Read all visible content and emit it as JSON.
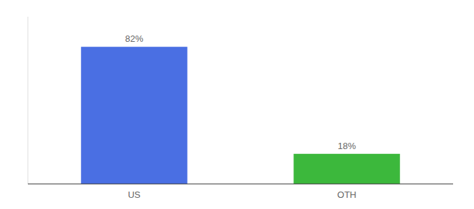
{
  "chart_data": {
    "type": "bar",
    "categories": [
      "US",
      "OTH"
    ],
    "values": [
      82,
      18
    ],
    "value_labels": [
      "82%",
      "18%"
    ],
    "colors": [
      "#4A6FE3",
      "#3CB83C"
    ],
    "ylim": [
      0,
      100
    ],
    "data_labels": true,
    "tick_labels": "x"
  }
}
